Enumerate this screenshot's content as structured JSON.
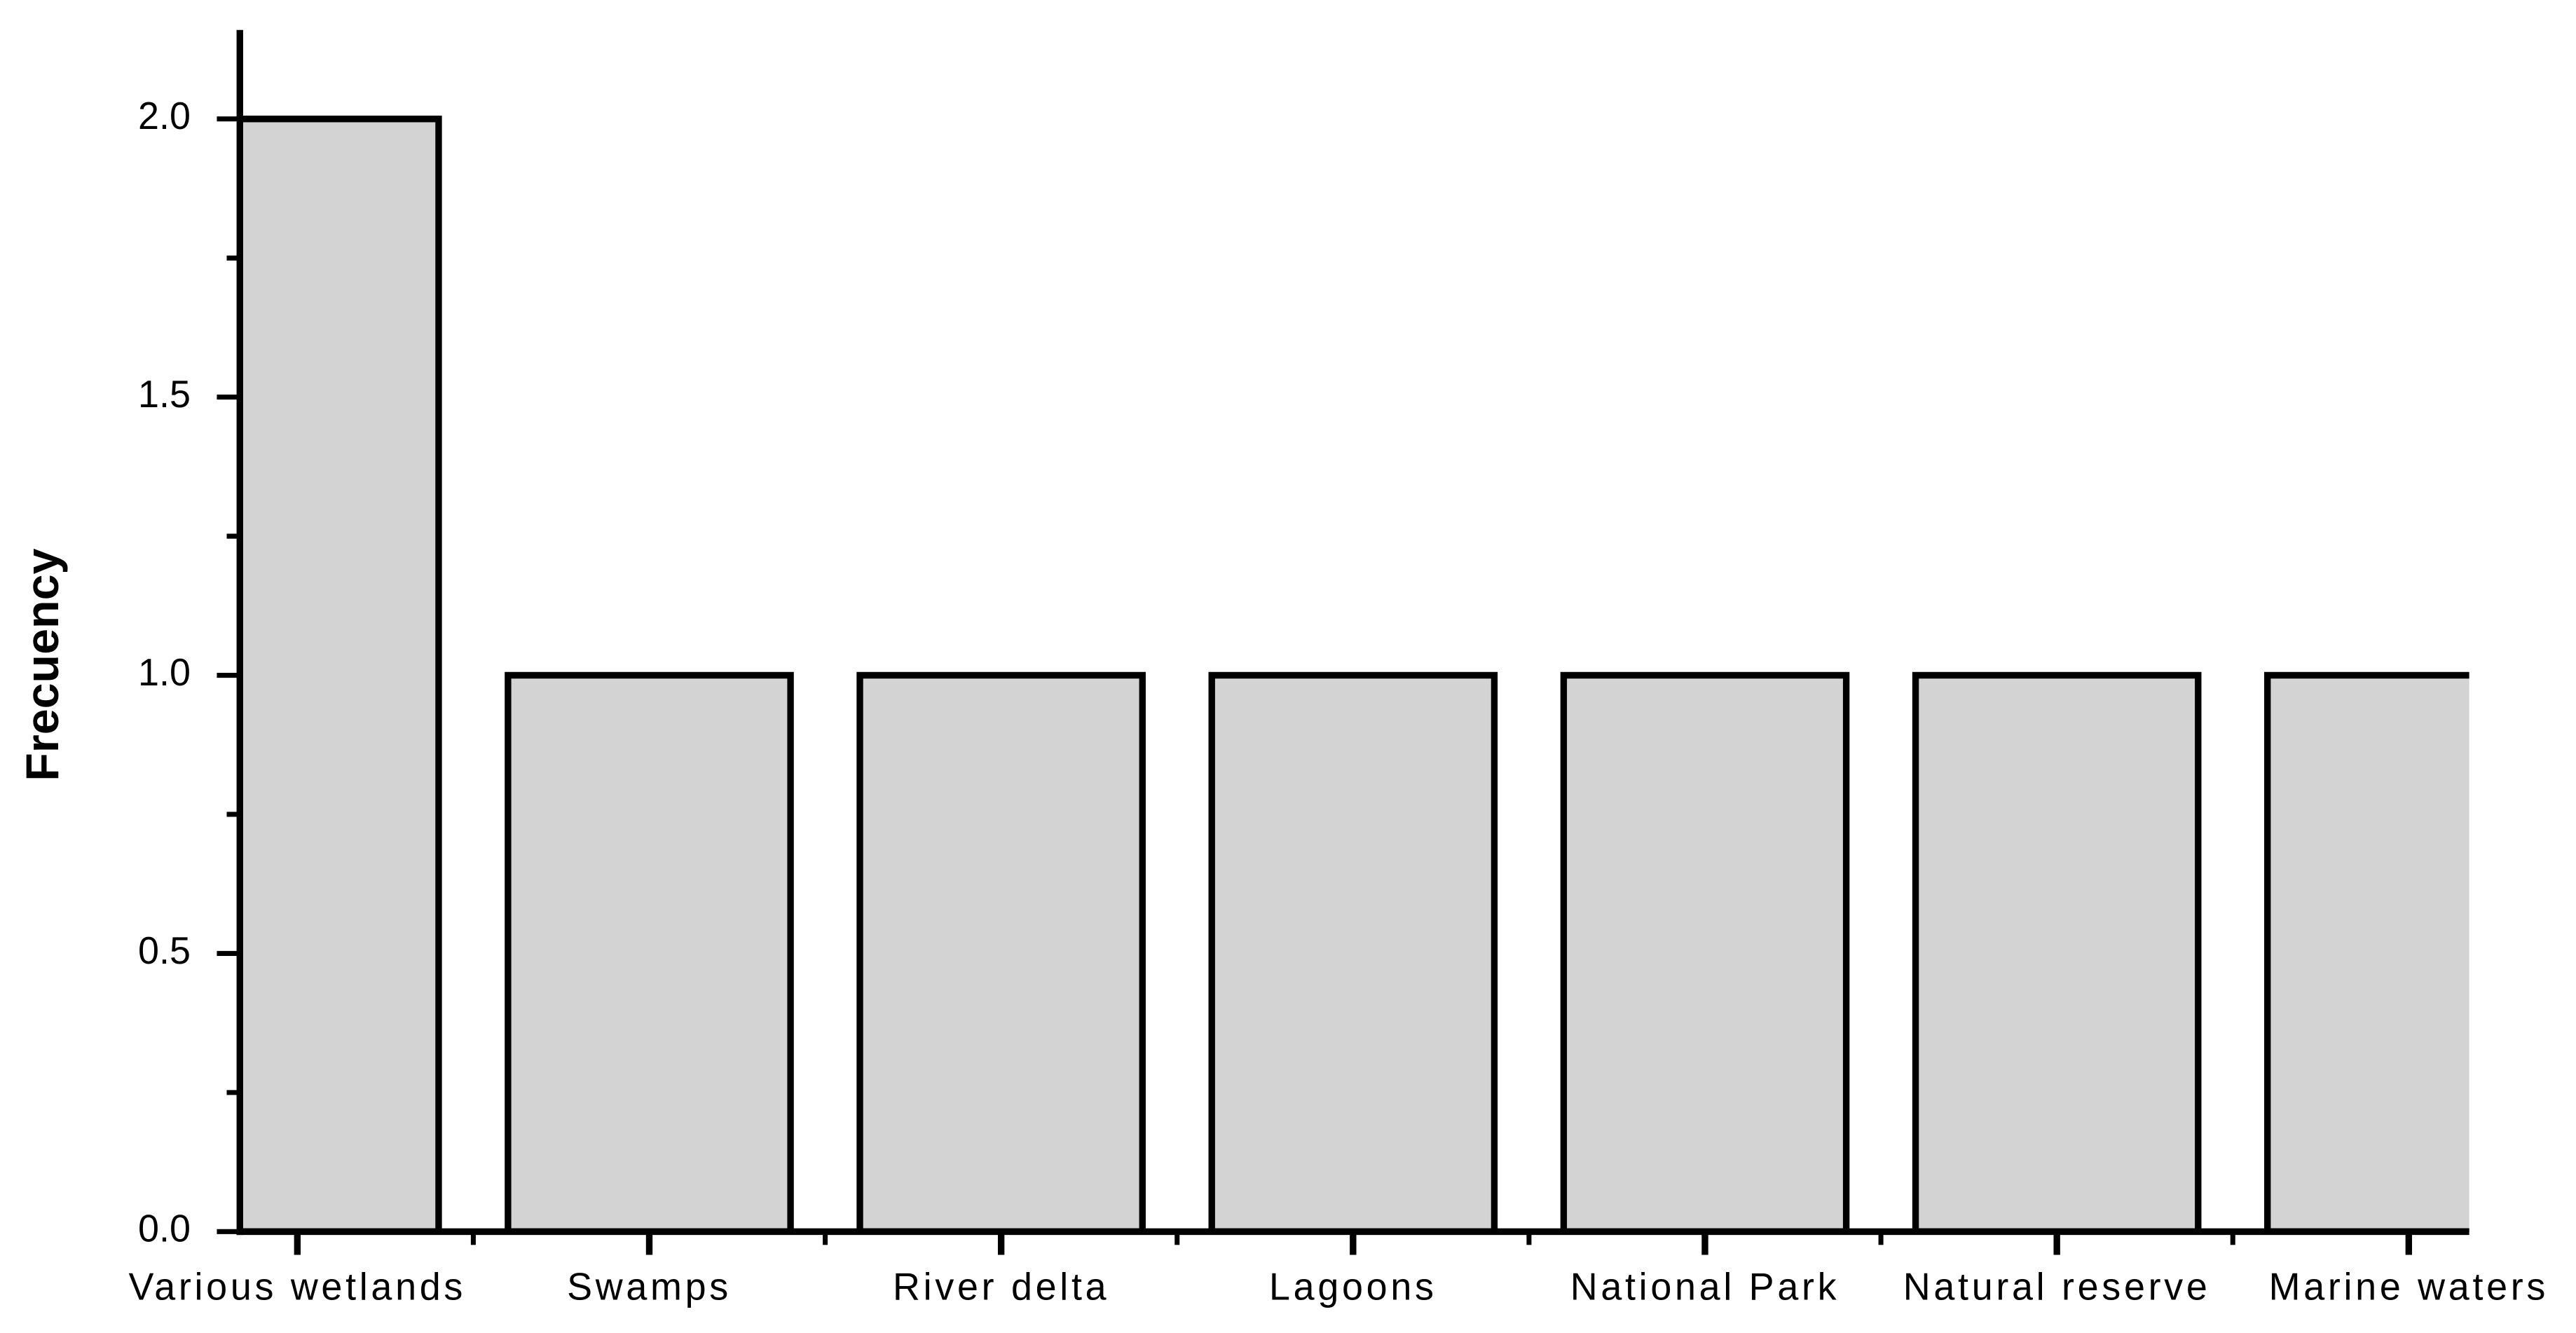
{
  "chart_data": {
    "type": "bar",
    "y_label": "Frecuency",
    "categories": [
      "Various wetlands",
      "Swamps",
      "River delta",
      "Lagoons",
      "National Park",
      "Natural reserve",
      "Marine waters"
    ],
    "values": [
      2,
      1,
      1,
      1,
      1,
      1,
      1
    ],
    "color": "#d3d3d3",
    "ylim": [
      0,
      2.16
    ],
    "yticks": [
      {
        "value": 0,
        "label": "0.0"
      },
      0.5,
      {
        "value": 1,
        "label": "1.0"
      },
      1.5,
      {
        "value": 2,
        "label": "2.0"
      }
    ],
    "grid": false
  }
}
